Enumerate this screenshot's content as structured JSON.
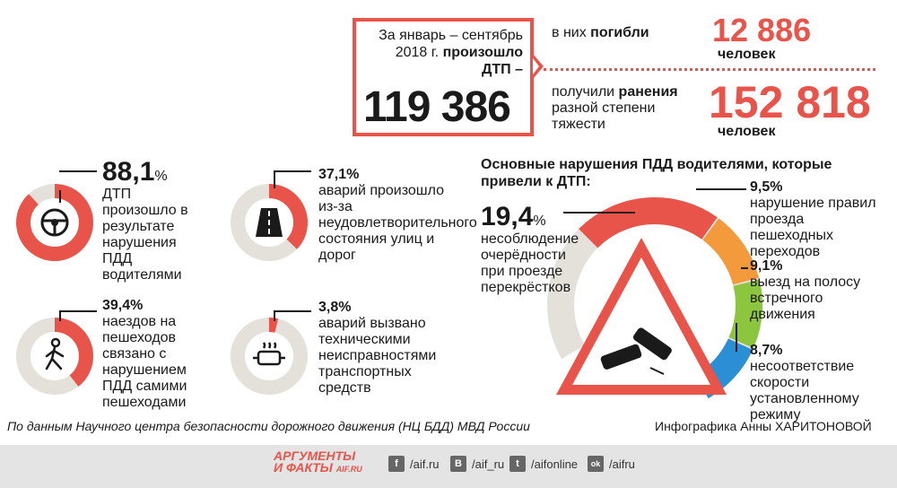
{
  "headline": {
    "period_text": "За январь – сентябрь 2018 г.",
    "happened": "произошло",
    "dtp": "ДТП –",
    "total": "119 386"
  },
  "killed": {
    "prefix": "в них",
    "label": "погибли",
    "value": "12 886",
    "unit": "человек"
  },
  "injured": {
    "prefix": "получили",
    "label": "ранения",
    "rest": "разной степени тяжести",
    "value": "152 818",
    "unit": "человек"
  },
  "rings": [
    {
      "percent": "88,1",
      "unit": "%",
      "text": "ДТП произошло в результате нарушения ПДД водителями",
      "value": 88.1,
      "icon": "steering-wheel-icon"
    },
    {
      "percent": "37,1%",
      "unit": "",
      "text": "аварий произошло из-за неудовлетворительного состояния улиц и дорог",
      "value": 37.1,
      "icon": "road-icon"
    },
    {
      "percent": "39,4%",
      "unit": "",
      "text": "наездов на пешеходов связано с нарушением ПДД самими пешеходами",
      "value": 39.4,
      "icon": "pedestrian-icon"
    },
    {
      "percent": "3,8%",
      "unit": "",
      "text": "аварий вызвано техническими неисправностями транспортных средств",
      "value": 3.8,
      "icon": "engine-icon"
    }
  ],
  "violations": {
    "title": "Основные нарушения ПДД водителями, которые привели к ДТП:",
    "items": [
      {
        "percent": "19,4",
        "unit": "%",
        "text": "несоблюдение очерёдности при проезде перекрёстков",
        "value": 19.4,
        "color": "#e8534a"
      },
      {
        "percent": "9,5%",
        "unit": "",
        "text": "нарушение правил проезда пешеходных переходов",
        "value": 9.5,
        "color": "#f39a3c"
      },
      {
        "percent": "9,1%",
        "unit": "",
        "text": "выезд на полосу встречного движения",
        "value": 9.1,
        "color": "#8cc63f"
      },
      {
        "percent": "8,7%",
        "unit": "",
        "text": "несоответствие скорости установленному режиму",
        "value": 8.7,
        "color": "#2b8fd6"
      }
    ]
  },
  "colors": {
    "accent": "#e8534a",
    "ring_bg": "#e3e1da"
  },
  "source": "По данным Научного центра безопасности дорожного движения (НЦ БДД) МВД России",
  "credit": "Инфографика Анны ХАРИТОНОВОЙ",
  "footer": {
    "logo_line1": "АРГУМЕНТЫ",
    "logo_line2": "И ФАКТЫ",
    "logo_site": "AIF.RU",
    "social": [
      {
        "icon": "facebook-icon",
        "glyph": "f",
        "handle": "/aif.ru"
      },
      {
        "icon": "vk-icon",
        "glyph": "B",
        "handle": "/aif_ru"
      },
      {
        "icon": "twitter-icon",
        "glyph": "t",
        "handle": "/aifonline"
      },
      {
        "icon": "odnoklassniki-icon",
        "glyph": "ok",
        "handle": "/aifru"
      }
    ]
  }
}
